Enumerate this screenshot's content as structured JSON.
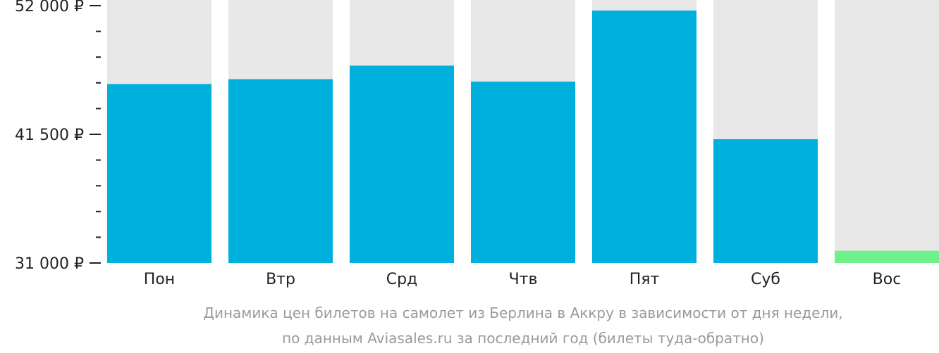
{
  "chart_data": {
    "type": "bar",
    "categories": [
      "Пон",
      "Втр",
      "Срд",
      "Чтв",
      "Пят",
      "Суб",
      "Вос"
    ],
    "values": [
      45600,
      46000,
      47100,
      45800,
      51600,
      41100,
      32000
    ],
    "ylim": [
      31000,
      52000
    ],
    "yticks": [
      31000,
      41500,
      52000
    ],
    "ytick_labels": [
      "31 000 ₽",
      "41 500 ₽",
      "52 000 ₽"
    ],
    "minor_ticks_between": 4,
    "grid": false,
    "colors": {
      "bar": "#00b0dc",
      "bar_min": "#6ef08a",
      "track": "#e8e8e8"
    },
    "caption_lines": [
      "Динамика цен билетов на самолет из Берлина в Аккру в зависимости от дня недели,",
      "по данным Aviasales.ru за последний год (билеты туда-обратно)"
    ]
  }
}
